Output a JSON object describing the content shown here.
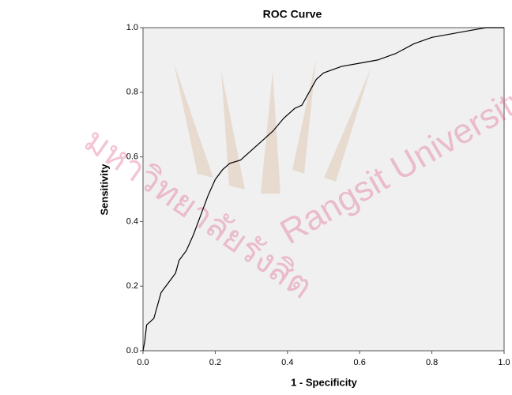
{
  "chart_data": {
    "type": "line",
    "title": "ROC Curve",
    "x_label": "1 - Specificity",
    "y_label": "Sensitivity",
    "watermark": [
      "มหาวิทยาลัยรังสิต",
      "Rangsit University"
    ],
    "x": [
      0,
      0.005,
      0.01,
      0.02,
      0.03,
      0.04,
      0.05,
      0.07,
      0.09,
      0.1,
      0.12,
      0.14,
      0.16,
      0.18,
      0.2,
      0.22,
      0.24,
      0.27,
      0.3,
      0.33,
      0.36,
      0.39,
      0.42,
      0.44,
      0.46,
      0.48,
      0.5,
      0.55,
      0.6,
      0.65,
      0.7,
      0.75,
      0.8,
      0.85,
      0.9,
      0.95,
      1
    ],
    "values": [
      0,
      0.03,
      0.08,
      0.09,
      0.1,
      0.14,
      0.18,
      0.21,
      0.24,
      0.28,
      0.31,
      0.36,
      0.42,
      0.48,
      0.53,
      0.56,
      0.58,
      0.59,
      0.62,
      0.65,
      0.68,
      0.72,
      0.75,
      0.76,
      0.8,
      0.84,
      0.86,
      0.88,
      0.89,
      0.9,
      0.92,
      0.95,
      0.97,
      0.98,
      0.99,
      1,
      1
    ],
    "color": "#000000",
    "xlim": [
      0,
      1
    ],
    "ylim": [
      0,
      1
    ],
    "xticks": [
      {
        "value": 0,
        "label": "0.0"
      },
      0.2,
      0.4,
      0.6,
      0.8,
      {
        "value": 1,
        "label": "1.0"
      }
    ],
    "yticks": [
      {
        "value": 0,
        "label": "0.0"
      },
      0.2,
      0.4,
      0.6,
      0.8,
      {
        "value": 1,
        "label": "1.0"
      }
    ]
  }
}
